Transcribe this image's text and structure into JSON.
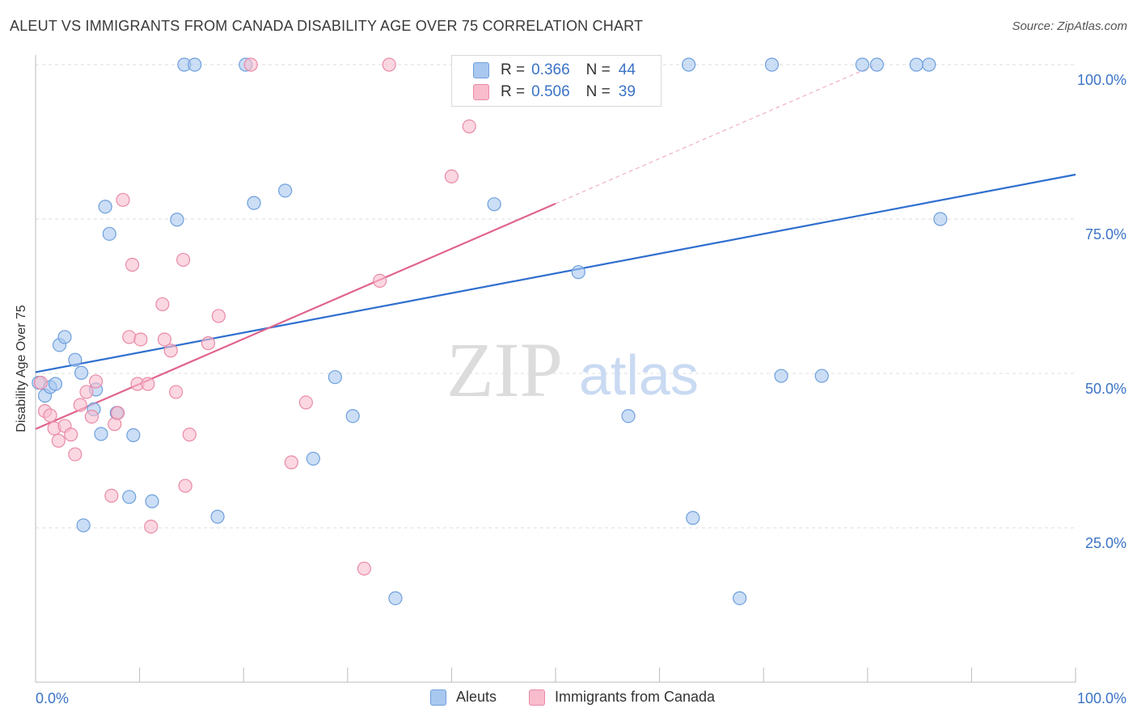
{
  "title": "ALEUT VS IMMIGRANTS FROM CANADA DISABILITY AGE OVER 75 CORRELATION CHART",
  "source": "Source: ZipAtlas.com",
  "watermark": {
    "zip": "ZIP",
    "atlas": "atlas"
  },
  "legend": {
    "r_label": "R =",
    "n_label": "N =",
    "rows": [
      {
        "r": "0.366",
        "n": "44",
        "color": "#a9c8f0",
        "border": "#6e9fdc"
      },
      {
        "r": "0.506",
        "n": "39",
        "color": "#f8bccd",
        "border": "#e98aa6"
      }
    ]
  },
  "bottom_legend": [
    {
      "label": "Aleuts",
      "color": "#a9c8f0",
      "border": "#6e9fdc"
    },
    {
      "label": "Immigrants from Canada",
      "color": "#f8bccd",
      "border": "#e98aa6"
    }
  ],
  "chart_data": {
    "type": "scatter",
    "title": "ALEUT VS IMMIGRANTS FROM CANADA DISABILITY AGE OVER 75 CORRELATION CHART",
    "xlabel": "",
    "ylabel": "Disability Age Over 75",
    "xlim": [
      0,
      100
    ],
    "ylim": [
      0,
      100
    ],
    "x_tick_labels": [
      "0.0%",
      "100.0%"
    ],
    "y_ticks": [
      25,
      50,
      75,
      100
    ],
    "y_tick_labels": [
      "25.0%",
      "50.0%",
      "75.0%",
      "100.0%"
    ],
    "grid": true,
    "series": [
      {
        "name": "Aleuts",
        "color": "#6e9fdc",
        "fill": "#a9c8f0",
        "trend_color": "#2f6fcf",
        "trend": {
          "x0": 0,
          "y0": 50.2,
          "x1": 100,
          "y1": 82.2,
          "solid_to": 100
        },
        "points": [
          [
            0.3,
            48.5
          ],
          [
            0.9,
            46.4
          ],
          [
            1.4,
            47.8
          ],
          [
            1.9,
            48.3
          ],
          [
            2.3,
            54.6
          ],
          [
            2.8,
            55.9
          ],
          [
            3.8,
            52.2
          ],
          [
            4.4,
            50.1
          ],
          [
            5.6,
            44.2
          ],
          [
            5.8,
            47.4
          ],
          [
            6.3,
            40.2
          ],
          [
            6.7,
            77.0
          ],
          [
            7.1,
            72.6
          ],
          [
            7.8,
            43.6
          ],
          [
            9.0,
            30.0
          ],
          [
            9.4,
            40.0
          ],
          [
            11.2,
            29.3
          ],
          [
            13.6,
            74.9
          ],
          [
            14.3,
            100
          ],
          [
            15.3,
            100
          ],
          [
            17.5,
            26.8
          ],
          [
            20.2,
            100
          ],
          [
            21.0,
            77.6
          ],
          [
            24.0,
            79.6
          ],
          [
            26.7,
            36.2
          ],
          [
            28.8,
            49.4
          ],
          [
            30.5,
            43.1
          ],
          [
            34.6,
            13.6
          ],
          [
            44.1,
            77.4
          ],
          [
            47.1,
            100
          ],
          [
            52.2,
            66.4
          ],
          [
            57.0,
            43.1
          ],
          [
            62.8,
            100
          ],
          [
            63.2,
            26.6
          ],
          [
            67.7,
            13.6
          ],
          [
            70.8,
            100
          ],
          [
            71.7,
            49.6
          ],
          [
            75.6,
            49.6
          ],
          [
            79.5,
            100
          ],
          [
            80.9,
            100
          ],
          [
            84.7,
            100
          ],
          [
            85.9,
            100
          ],
          [
            87.0,
            75.0
          ],
          [
            4.6,
            25.4
          ]
        ]
      },
      {
        "name": "Immigrants from Canada",
        "color": "#e98aa6",
        "fill": "#f8bccd",
        "trend_color": "#e0648c",
        "trend": {
          "x0": 0,
          "y0": 41.0,
          "x1": 100,
          "y1": 114.0,
          "solid_to": 50
        },
        "points": [
          [
            0.5,
            48.5
          ],
          [
            0.9,
            43.9
          ],
          [
            1.4,
            43.2
          ],
          [
            1.8,
            41.1
          ],
          [
            2.2,
            39.1
          ],
          [
            2.8,
            41.5
          ],
          [
            3.4,
            40.1
          ],
          [
            3.8,
            36.9
          ],
          [
            4.3,
            44.9
          ],
          [
            4.9,
            47.0
          ],
          [
            5.4,
            43.0
          ],
          [
            5.8,
            48.7
          ],
          [
            7.3,
            30.2
          ],
          [
            7.6,
            41.8
          ],
          [
            7.9,
            43.6
          ],
          [
            8.4,
            78.1
          ],
          [
            9.0,
            55.9
          ],
          [
            9.3,
            67.6
          ],
          [
            9.8,
            48.3
          ],
          [
            10.1,
            55.5
          ],
          [
            10.8,
            48.3
          ],
          [
            11.1,
            25.2
          ],
          [
            12.2,
            61.2
          ],
          [
            12.4,
            55.5
          ],
          [
            13.0,
            53.7
          ],
          [
            13.5,
            47.0
          ],
          [
            14.2,
            68.4
          ],
          [
            14.8,
            40.1
          ],
          [
            16.6,
            54.9
          ],
          [
            17.6,
            59.3
          ],
          [
            20.7,
            100
          ],
          [
            24.6,
            35.6
          ],
          [
            26.0,
            45.3
          ],
          [
            31.6,
            18.4
          ],
          [
            33.1,
            65.0
          ],
          [
            34.0,
            100
          ],
          [
            40.0,
            81.9
          ],
          [
            41.7,
            90.0
          ],
          [
            14.4,
            31.8
          ]
        ]
      }
    ]
  }
}
